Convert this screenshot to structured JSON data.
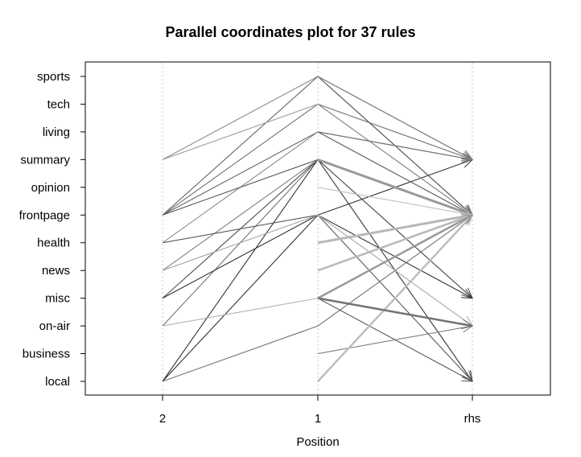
{
  "chart_data": {
    "type": "parallel-coordinates",
    "title": "Parallel coordinates plot for 37 rules",
    "xlabel": "Position",
    "axes": [
      "2",
      "1",
      "rhs"
    ],
    "items": [
      "sports",
      "tech",
      "living",
      "summary",
      "opinion",
      "frontpage",
      "health",
      "news",
      "misc",
      "on-air",
      "business",
      "local"
    ],
    "rules": [
      {
        "lhs": [
          "summary",
          "sports"
        ],
        "rhs": "frontpage",
        "shade": 0.55
      },
      {
        "lhs": [
          "frontpage",
          "sports"
        ],
        "rhs": "summary",
        "shade": 0.4
      },
      {
        "lhs": [
          "frontpage",
          "tech"
        ],
        "rhs": "summary",
        "shade": 0.45
      },
      {
        "lhs": [
          "summary",
          "tech"
        ],
        "rhs": "frontpage",
        "shade": 0.6
      },
      {
        "lhs": [
          "frontpage",
          "living"
        ],
        "rhs": "summary",
        "shade": 0.4
      },
      {
        "lhs": [
          "health",
          "living"
        ],
        "rhs": "frontpage",
        "shade": 0.55
      },
      {
        "lhs": [
          "frontpage",
          "summary"
        ],
        "rhs": "local",
        "shade": 0.35
      },
      {
        "lhs": [
          "misc",
          "summary"
        ],
        "rhs": "frontpage",
        "shade": 0.3
      },
      {
        "lhs": [
          "on-air",
          "summary"
        ],
        "rhs": "frontpage",
        "shade": 0.45
      },
      {
        "lhs": [
          "local",
          "summary"
        ],
        "rhs": "frontpage",
        "shade": 0.2
      },
      {
        "lhs": [
          "news",
          "summary"
        ],
        "rhs": "frontpage",
        "shade": 0.5
      },
      {
        "lhs": [
          "misc",
          "frontpage"
        ],
        "rhs": "summary",
        "shade": 0.2
      },
      {
        "lhs": [
          "local",
          "frontpage"
        ],
        "rhs": "misc",
        "shade": 0.2
      },
      {
        "lhs": [
          "health",
          "frontpage"
        ],
        "rhs": "local",
        "shade": 0.35
      },
      {
        "lhs": [
          "news",
          "frontpage"
        ],
        "rhs": "on-air",
        "shade": 0.65
      },
      {
        "lhs": [
          "on-air",
          "misc"
        ],
        "rhs": "frontpage",
        "shade": 0.7
      },
      {
        "lhs": [
          "local",
          "on-air"
        ],
        "rhs": "frontpage",
        "shade": 0.45
      }
    ],
    "direct_rules": [
      {
        "lhs": "sports",
        "rhs": "frontpage",
        "shade": 0.35
      },
      {
        "lhs": "tech",
        "rhs": "frontpage",
        "shade": 0.55
      },
      {
        "lhs": "living",
        "rhs": "frontpage",
        "shade": 0.4
      },
      {
        "lhs": "summary",
        "rhs": "misc",
        "shade": 0.25
      },
      {
        "lhs": "summary",
        "rhs": "local",
        "shade": 0.3
      },
      {
        "lhs": "opinion",
        "rhs": "frontpage",
        "shade": 0.75
      },
      {
        "lhs": "health",
        "rhs": "frontpage",
        "shade": 0.7
      },
      {
        "lhs": "news",
        "rhs": "frontpage",
        "shade": 0.72
      },
      {
        "lhs": "misc",
        "rhs": "local",
        "shade": 0.35
      },
      {
        "lhs": "misc",
        "rhs": "on-air",
        "shade": 0.45
      },
      {
        "lhs": "business",
        "rhs": "on-air",
        "shade": 0.5
      },
      {
        "lhs": "local",
        "rhs": "frontpage",
        "shade": 0.72
      },
      {
        "lhs": "living",
        "rhs": "summary",
        "shade": 0.45
      },
      {
        "lhs": "frontpage",
        "rhs": "on-air",
        "shade": 0.7
      },
      {
        "lhs": "sports",
        "rhs": "summary",
        "shade": 0.5
      }
    ],
    "heavy_rules": [
      {
        "from": "summary",
        "to": "frontpage",
        "shade": 0.6,
        "width": 3
      },
      {
        "from": "health",
        "to": "frontpage",
        "shade": 0.72,
        "width": 3
      },
      {
        "from": "news",
        "to": "frontpage",
        "shade": 0.72,
        "width": 2.5
      },
      {
        "from": "local",
        "to": "frontpage",
        "shade": 0.74,
        "width": 2.5
      },
      {
        "from": "misc",
        "to": "frontpage",
        "shade": 0.6,
        "width": 2.5
      },
      {
        "from": "misc",
        "to": "on-air",
        "shade": 0.45,
        "width": 2.5
      }
    ],
    "grid": true
  }
}
